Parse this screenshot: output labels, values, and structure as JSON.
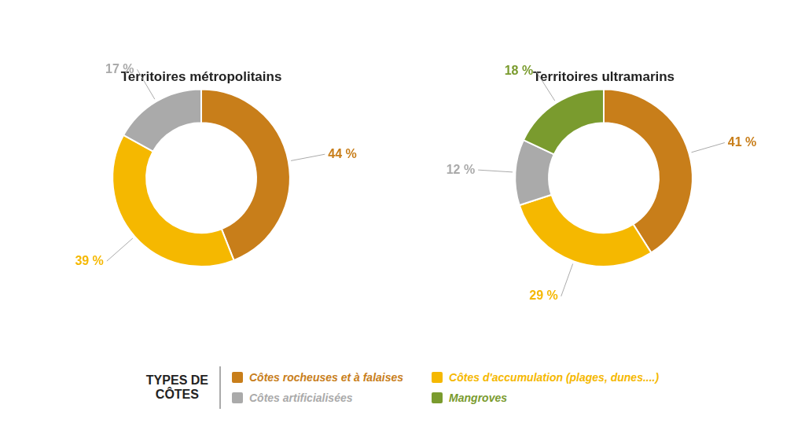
{
  "chart_data": [
    {
      "type": "doughnut",
      "title": "Territoires métropolitains",
      "categories": [
        "Côtes rocheuses et à falaises",
        "Côtes d'accumulation (plages, dunes....)",
        "Côtes artificialisées"
      ],
      "values": [
        44,
        39,
        17
      ],
      "value_labels": [
        "44 %",
        "39 %",
        "17 %"
      ],
      "colors": [
        "#C87E1A",
        "#F5B800",
        "#AAAAAA"
      ],
      "data_labels": true
    },
    {
      "type": "doughnut",
      "title": "Territoires ultramarins",
      "categories": [
        "Côtes rocheuses et à falaises",
        "Côtes d'accumulation (plages, dunes....)",
        "Côtes artificialisées",
        "Mangroves"
      ],
      "values": [
        41,
        29,
        12,
        18
      ],
      "value_labels": [
        "41 %",
        "29 %",
        "12 %",
        "18 %"
      ],
      "colors": [
        "#C87E1A",
        "#F5B800",
        "#AAAAAA",
        "#7A9B2E"
      ],
      "data_labels": true
    }
  ],
  "legend_title": "TYPES DE\nCÔTES"
}
